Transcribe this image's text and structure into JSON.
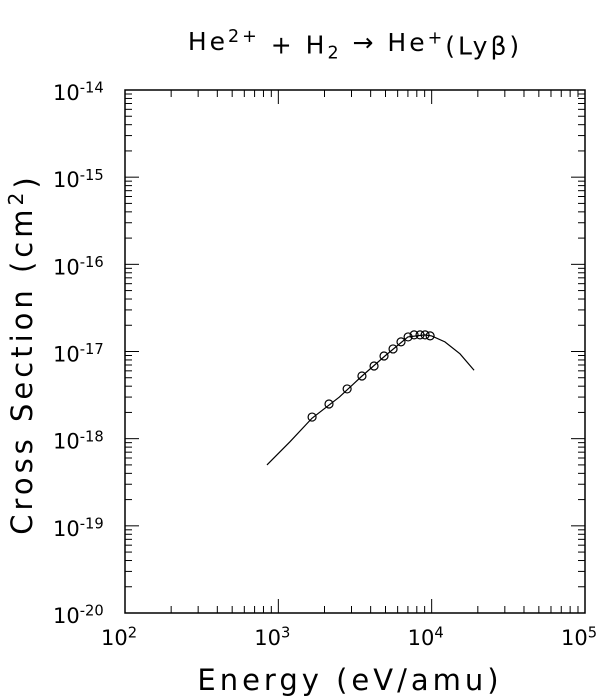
{
  "chart_data": {
    "type": "line+scatter",
    "title": [
      {
        "text": "He"
      },
      {
        "text": "2+",
        "script": "super"
      },
      {
        "text": " + H"
      },
      {
        "text": "2",
        "script": "sub"
      },
      {
        "text": " → He"
      },
      {
        "text": "+",
        "script": "super"
      },
      {
        "text": "(Lyβ)"
      }
    ],
    "x_label": [
      {
        "text": "Energy (eV/amu)"
      }
    ],
    "y_label": [
      {
        "text": "Cross Section (cm"
      },
      {
        "text": "2",
        "script": "super"
      },
      {
        "text": ")"
      }
    ],
    "xscale": "log",
    "yscale": "log",
    "xlim": [
      100,
      100000
    ],
    "ylim": [
      1e-20,
      1e-14
    ],
    "xticks": [
      {
        "value": 100,
        "label": "10",
        "exponent": "2"
      },
      {
        "value": 1000,
        "label": "10",
        "exponent": "3"
      },
      {
        "value": 10000,
        "label": "10",
        "exponent": "4"
      },
      {
        "value": 100000,
        "label": "10",
        "exponent": "5"
      }
    ],
    "yticks": [
      {
        "value": 1e-20,
        "label": "10",
        "exponent": "-20"
      },
      {
        "value": 1e-19,
        "label": "10",
        "exponent": "-19"
      },
      {
        "value": 1e-18,
        "label": "10",
        "exponent": "-18"
      },
      {
        "value": 1e-17,
        "label": "10",
        "exponent": "-17"
      },
      {
        "value": 1e-16,
        "label": "10",
        "exponent": "-16"
      },
      {
        "value": 1e-15,
        "label": "10",
        "exponent": "-15"
      },
      {
        "value": 1e-14,
        "label": "10",
        "exponent": "-14"
      }
    ],
    "series": [
      {
        "type": "line",
        "color": "#000000",
        "x": [
          843,
          1190,
          1660,
          2500,
          3500,
          5000,
          7000,
          9000,
          10000,
          12200,
          15300,
          18900
        ],
        "values": [
          5e-19,
          9.2e-19,
          1.72e-18,
          3e-18,
          5.2e-18,
          9e-18,
          1.47e-17,
          1.55e-17,
          1.51e-17,
          1.29e-17,
          9.4e-18,
          6.1e-18
        ]
      },
      {
        "type": "scatter",
        "color": "#000000",
        "x": [
          1660,
          2140,
          2810,
          3510,
          4210,
          4890,
          5600,
          6310,
          7020,
          7680,
          8400,
          9060,
          9770
        ],
        "values": [
          1.77e-18,
          2.5e-18,
          3.72e-18,
          5.24e-18,
          6.82e-18,
          8.88e-18,
          1.07e-17,
          1.29e-17,
          1.47e-17,
          1.55e-17,
          1.55e-17,
          1.55e-17,
          1.51e-17
        ]
      }
    ]
  }
}
